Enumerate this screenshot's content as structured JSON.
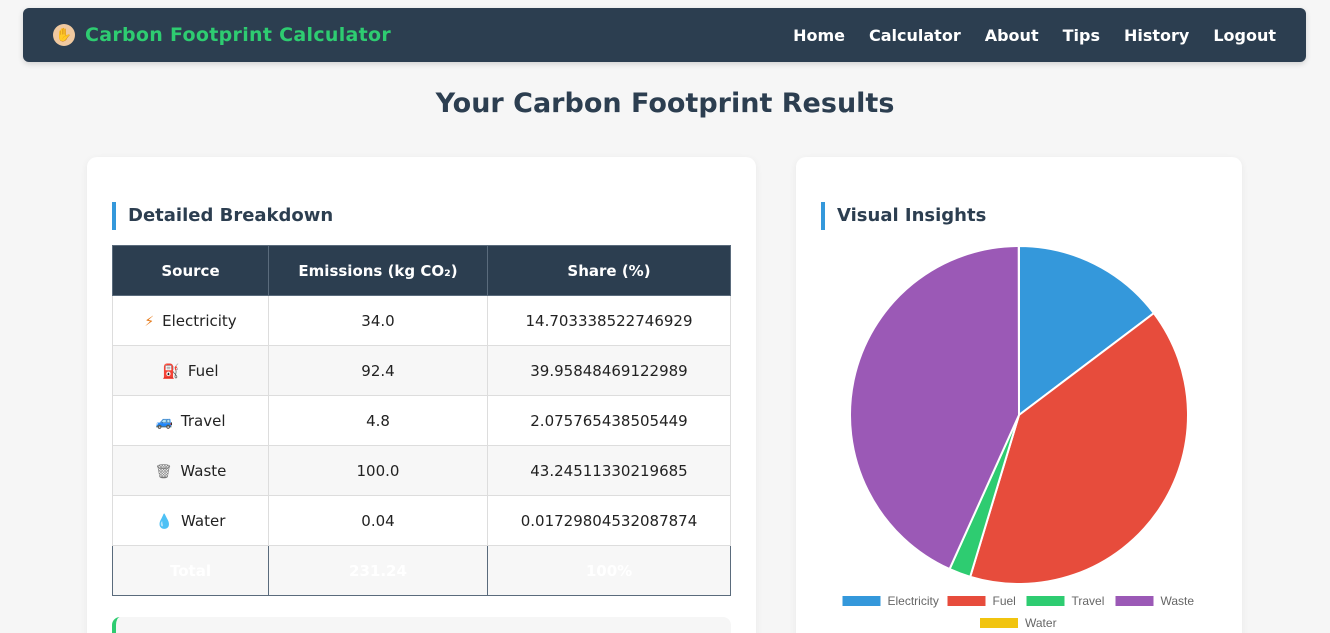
{
  "nav": {
    "brand": "Carbon Footprint Calculator",
    "links": [
      "Home",
      "Calculator",
      "About",
      "Tips",
      "History",
      "Logout"
    ]
  },
  "page_title": "Your Carbon Footprint Results",
  "breakdown": {
    "title": "Detailed Breakdown",
    "headers": [
      "Source",
      "Emissions (kg CO₂)",
      "Share (%)"
    ],
    "rows": [
      {
        "icon": "⚡",
        "source": "Electricity",
        "emissions": "34.0",
        "share": "14.703338522746929"
      },
      {
        "icon": "⛽",
        "source": "Fuel",
        "emissions": "92.4",
        "share": "39.95848469122989"
      },
      {
        "icon": "🚙",
        "source": "Travel",
        "emissions": "4.8",
        "share": "2.075765438505449"
      },
      {
        "icon": "🗑",
        "source": "Waste",
        "emissions": "100.0",
        "share": "43.24511330219685"
      },
      {
        "icon": "💧",
        "source": "Water",
        "emissions": "0.04",
        "share": "0.01729804532087874"
      }
    ],
    "total": {
      "label": "Total",
      "emissions": "231.24",
      "share": "100%"
    }
  },
  "insights": {
    "title": "Visual Insights"
  },
  "chart_data": {
    "type": "pie",
    "categories": [
      "Electricity",
      "Fuel",
      "Travel",
      "Waste",
      "Water"
    ],
    "values": [
      34.0,
      92.4,
      4.8,
      100.0,
      0.04
    ],
    "colors": [
      "#3498db",
      "#e74c3c",
      "#2ecc71",
      "#9b59b6",
      "#f1c40f"
    ],
    "legend": "bottom"
  }
}
